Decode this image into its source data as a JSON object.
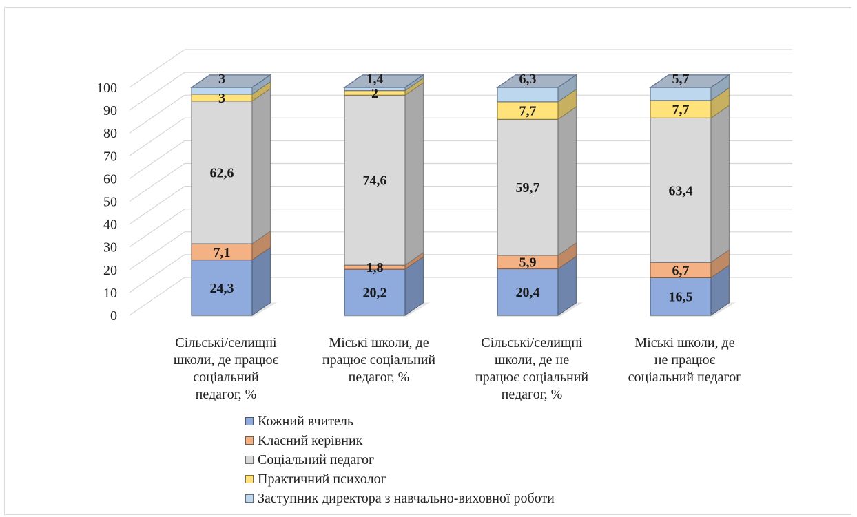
{
  "chart_data": {
    "type": "bar",
    "stacked": true,
    "three_d": true,
    "title": "",
    "xlabel": "",
    "ylabel": "",
    "ylim": [
      0,
      100
    ],
    "yticks": [
      "0",
      "10",
      "20",
      "30",
      "40",
      "50",
      "60",
      "70",
      "80",
      "90",
      "100"
    ],
    "grid": true,
    "legend_position": "bottom",
    "categories": [
      "Сільські/селищні школи, де працює соціальний педагог, %",
      "Міські школи, де працює соціальний педагог, %",
      "Сільські/селищні школи, де не працює соціальний педагог, %",
      "Міські школи, де не працює соціальний педагог"
    ],
    "category_lines": [
      [
        "Сільські/селищні",
        "школи, де працює",
        "соціальний",
        "педагог, %"
      ],
      [
        "Міські школи, де",
        "працює соціальний",
        "педагог, %"
      ],
      [
        "Сільські/селищні",
        "школи, де не",
        "працює соціальний",
        "педагог, %"
      ],
      [
        "Міські школи, де",
        "не працює",
        "соціальний педагог"
      ]
    ],
    "series": [
      {
        "name": "Кожний вчитель",
        "color": "#8faadc",
        "values": [
          24.3,
          20.2,
          20.4,
          16.5
        ],
        "labels": [
          "24,3",
          "20,2",
          "20,4",
          "16,5"
        ]
      },
      {
        "name": "Класний керівник",
        "color": "#f4b183",
        "values": [
          7.1,
          1.8,
          5.9,
          6.7
        ],
        "labels": [
          "7,1",
          "1,8",
          "5,9",
          "6,7"
        ]
      },
      {
        "name": "Соціальний педагог",
        "color": "#d9d9d9",
        "values": [
          62.6,
          74.6,
          59.7,
          63.4
        ],
        "labels": [
          "62,6",
          "74,6",
          "59,7",
          "63,4"
        ]
      },
      {
        "name": "Практичний психолог",
        "color": "#ffe27a",
        "values": [
          3,
          2,
          7.7,
          7.7
        ],
        "labels": [
          "3",
          "2",
          "7,7",
          "7,7"
        ]
      },
      {
        "name": "Заступник директора з навчально-виховної роботи",
        "color": "#bdd7ee",
        "values": [
          3,
          1.4,
          6.3,
          5.7
        ],
        "labels": [
          "3",
          "1,4",
          "6,3",
          "5,7"
        ]
      }
    ]
  }
}
